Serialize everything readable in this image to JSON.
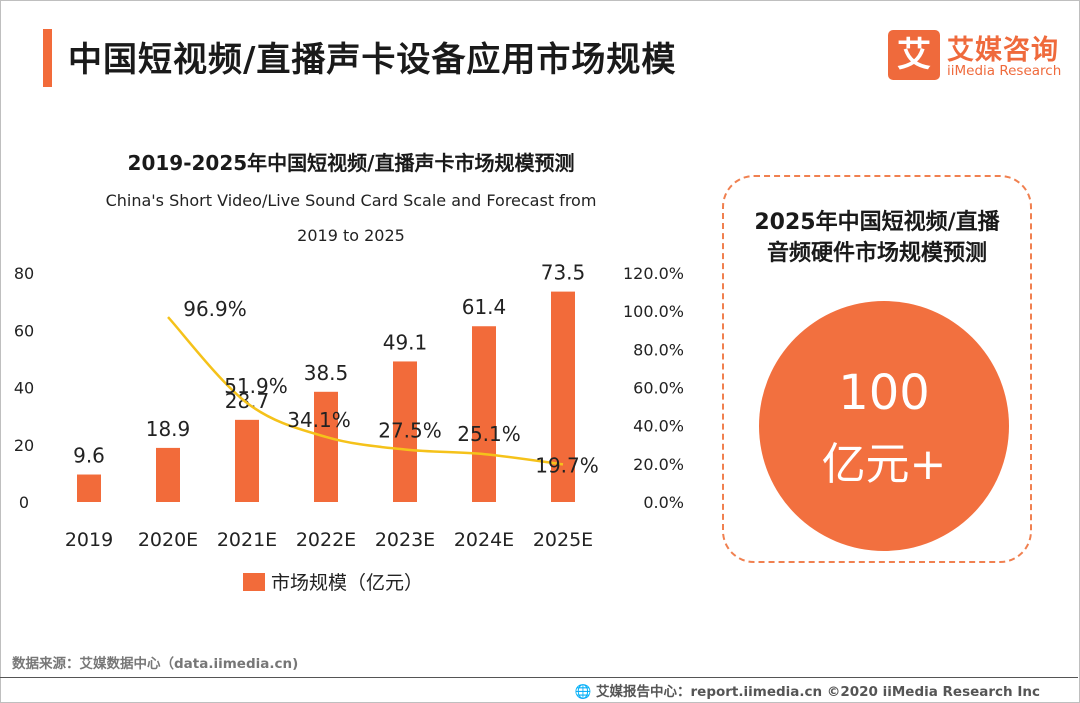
{
  "header": {
    "title": "中国短视频/直播声卡设备应用市场规模",
    "logo_mark": "艾",
    "logo_cn": "艾媒咨询",
    "logo_en": "iiMedia Research"
  },
  "chart_data": {
    "type": "bar",
    "title": "2019-2025年中国短视频/直播声卡市场规模预测",
    "subtitle_line1": "China's Short Video/Live Sound Card Scale and Forecast from",
    "subtitle_line2": "2019 to 2025",
    "categories": [
      "2019",
      "2020E",
      "2021E",
      "2022E",
      "2023E",
      "2024E",
      "2025E"
    ],
    "series": [
      {
        "name": "市场规模（亿元）",
        "type": "bar",
        "axis": "left",
        "color": "#f26b3a",
        "values": [
          9.6,
          18.9,
          28.7,
          38.5,
          49.1,
          61.4,
          73.5
        ],
        "labels": [
          "9.6",
          "18.9",
          "28.7",
          "38.5",
          "49.1",
          "61.4",
          "73.5"
        ]
      },
      {
        "type": "line",
        "axis": "right",
        "color": "#f5c21a",
        "values": [
          null,
          96.9,
          51.9,
          34.1,
          27.5,
          25.1,
          19.7
        ],
        "labels": [
          "",
          "96.9%",
          "51.9%",
          "34.1%",
          "27.5%",
          "25.1%",
          "19.7%"
        ]
      }
    ],
    "y_left": {
      "min": 0,
      "max": 80,
      "ticks": [
        "0",
        "20",
        "40",
        "60",
        "80"
      ]
    },
    "y_right": {
      "min": 0,
      "max": 120,
      "ticks": [
        "0.0%",
        "20.0%",
        "40.0%",
        "60.0%",
        "80.0%",
        "100.0%",
        "120.0%"
      ]
    },
    "grid": false,
    "legend_position": "bottom"
  },
  "side_panel": {
    "title_line1": "2025年中国短视频/直播",
    "title_line2": "音频硬件市场规模预测",
    "value_line1": "100",
    "value_line2": "亿元+"
  },
  "footer": {
    "source": "数据来源：艾媒数据中心（data.iimedia.cn)",
    "copyright": "🌐 艾媒报告中心：report.iimedia.cn   ©2020  iiMedia Research  Inc"
  }
}
